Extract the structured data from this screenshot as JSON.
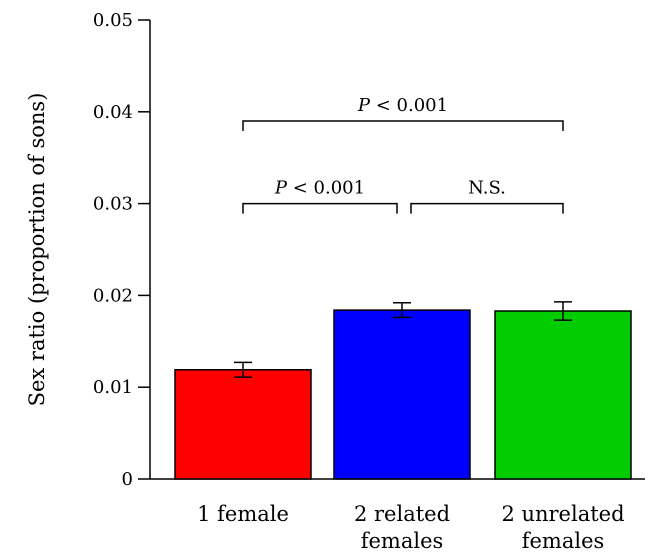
{
  "chart_data": {
    "type": "bar",
    "title": "",
    "xlabel": "",
    "ylabel": "Sex ratio (proportion of sons)",
    "ylim": [
      0,
      0.05
    ],
    "yticks": [
      {
        "value": 0,
        "label": "0"
      },
      {
        "value": 0.01,
        "label": "0.01"
      },
      {
        "value": 0.02,
        "label": "0.02"
      },
      {
        "value": 0.03,
        "label": "0.03"
      },
      {
        "value": 0.04,
        "label": "0.04"
      },
      {
        "value": 0.05,
        "label": "0.05"
      }
    ],
    "categories": [
      {
        "lines": [
          "1 female"
        ]
      },
      {
        "lines": [
          "2 related",
          "females"
        ]
      },
      {
        "lines": [
          "2 unrelated",
          "females"
        ]
      }
    ],
    "values": [
      0.0119,
      0.0184,
      0.0183
    ],
    "errors": [
      0.0008,
      0.0008,
      0.001
    ],
    "colors": [
      "#ff0000",
      "#0000ff",
      "#00cc00"
    ],
    "grid": false,
    "annotations": [
      {
        "from": 0,
        "to": 2,
        "level": 0.039,
        "p_symbol": "P",
        "p_text": " < 0.001"
      },
      {
        "from": 0,
        "to": 1,
        "level": 0.03,
        "p_symbol": "P",
        "p_text": " < 0.001"
      },
      {
        "from": 1,
        "to": 2,
        "level": 0.03,
        "p_symbol": "",
        "p_text": "N.S."
      }
    ]
  }
}
